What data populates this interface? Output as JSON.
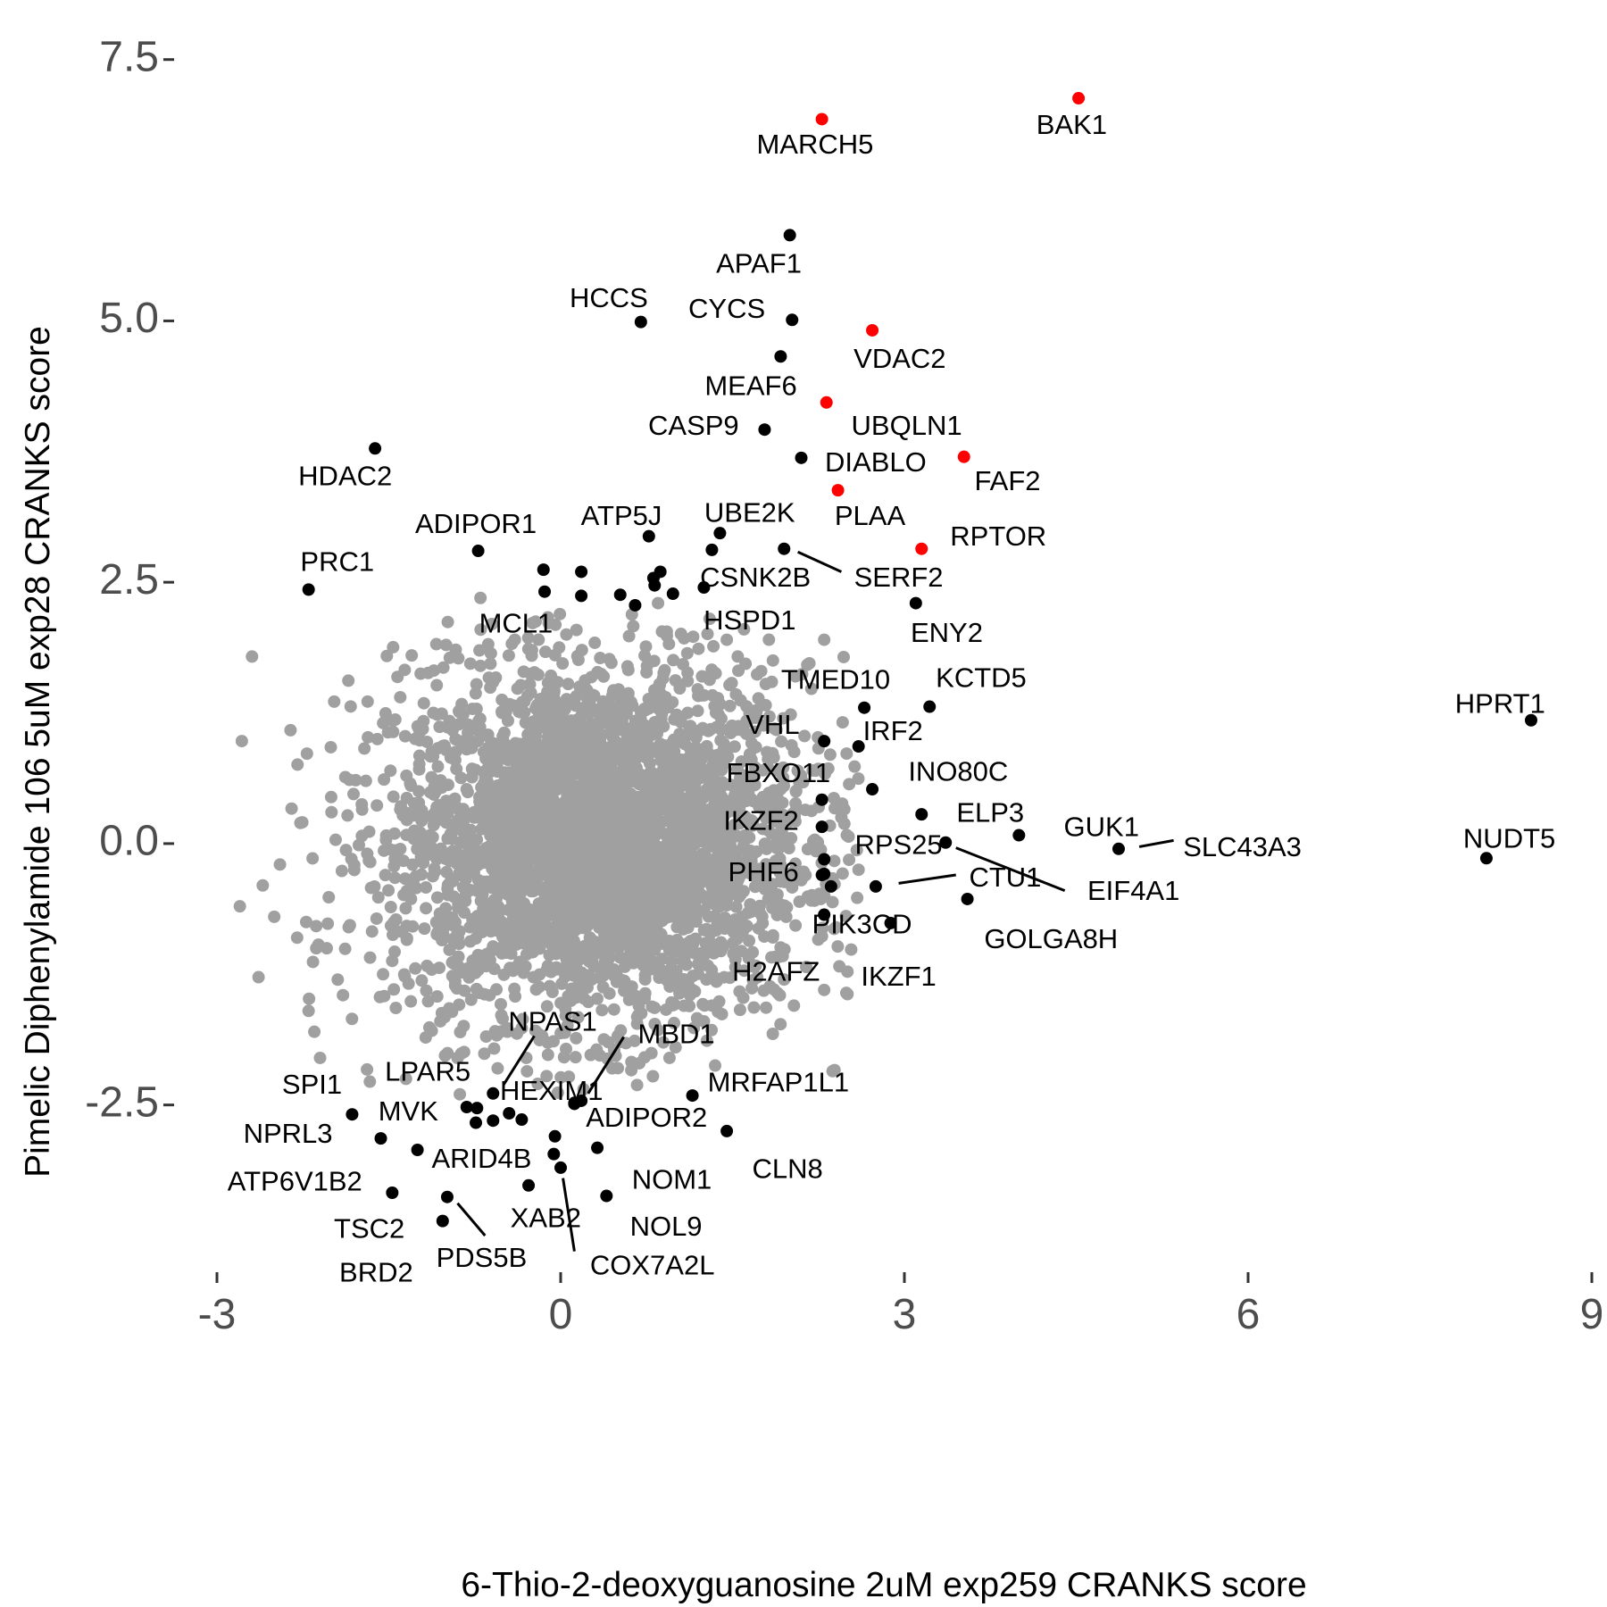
{
  "chart_data": {
    "type": "scatter",
    "xlabel": "6-Thio-2-deoxyguanosine 2uM exp259 CRANKS score",
    "ylabel": "Pimelic Diphenylamide 106 5uM exp28 CRANKS score",
    "xlim": [
      -3,
      9
    ],
    "ylim": [
      -4.1,
      7.6
    ],
    "x_ticks": [
      -3,
      0,
      3,
      6,
      9
    ],
    "x_tick_labels": [
      "-3",
      "0",
      "3",
      "6",
      "9"
    ],
    "y_ticks": [
      -2.5,
      0,
      2.5,
      5,
      7.5
    ],
    "y_tick_labels": [
      "-2.5",
      "0.0",
      "2.5",
      "5.0",
      "7.5"
    ],
    "grid": false,
    "colors": {
      "background_points": "#a0a0a0",
      "labeled_points": "#000000",
      "highlighted_points": "#ff0000"
    },
    "background_cloud": {
      "description_of_values": "thousands of unlabeled genes",
      "center": [
        0.35,
        0.0
      ],
      "sd": [
        0.9,
        0.85
      ],
      "count": 3500,
      "outliers": [
        [
          -2.8,
          -0.6
        ],
        [
          -2.6,
          -0.4
        ],
        [
          -2.5,
          -0.7
        ],
        [
          -2.45,
          -0.2
        ],
        [
          -2.3,
          -0.9
        ],
        [
          -2.2,
          -1.6
        ],
        [
          -2.15,
          -1.8
        ],
        [
          -2.1,
          -2.05
        ],
        [
          -1.9,
          -1.45
        ],
        [
          -1.85,
          -0.8
        ],
        [
          -1.7,
          0.6
        ],
        [
          -1.6,
          1.0
        ],
        [
          -1.4,
          1.4
        ],
        [
          -1.3,
          1.8
        ],
        [
          -1.0,
          1.9
        ],
        [
          -0.7,
          1.7
        ],
        [
          -0.6,
          2.1
        ],
        [
          -0.4,
          1.95
        ],
        [
          -0.25,
          1.85
        ],
        [
          0.05,
          2.0
        ],
        [
          -0.9,
          -2.05
        ],
        [
          -0.55,
          -2.15
        ],
        [
          -0.3,
          -2.05
        ],
        [
          0.2,
          -2.35
        ],
        [
          0.45,
          -2.15
        ],
        [
          0.95,
          -2.05
        ],
        [
          1.25,
          -1.7
        ],
        [
          1.95,
          -1.3
        ],
        [
          2.3,
          -1.4
        ],
        [
          2.1,
          -0.35
        ],
        [
          2.2,
          0.7
        ],
        [
          2.05,
          1.6
        ],
        [
          2.3,
          1.95
        ],
        [
          1.3,
          2.15
        ],
        [
          1.6,
          2.05
        ],
        [
          -1.35,
          -2.25
        ],
        [
          -1.55,
          -1.25
        ],
        [
          1.45,
          1.95
        ],
        [
          -2.0,
          0.3
        ],
        [
          2.45,
          0.25
        ],
        [
          -0.7,
          2.35
        ],
        [
          1.75,
          1.65
        ],
        [
          -1.05,
          -1.7
        ],
        [
          0.85,
          2.3
        ],
        [
          2.6,
          -0.25
        ]
      ]
    },
    "points": [
      {
        "gene": "BAK1",
        "x": 4.52,
        "y": 7.13,
        "hl": true
      },
      {
        "gene": "MARCH5",
        "x": 2.28,
        "y": 6.93,
        "hl": true
      },
      {
        "gene": "APAF1",
        "x": 2.0,
        "y": 5.82
      },
      {
        "gene": "CYCS",
        "x": 2.02,
        "y": 5.01
      },
      {
        "gene": "HCCS",
        "x": 0.7,
        "y": 4.99
      },
      {
        "gene": "VDAC2",
        "x": 2.72,
        "y": 4.91,
        "hl": true
      },
      {
        "gene": "MEAF6",
        "x": 1.92,
        "y": 4.66
      },
      {
        "gene": "UBQLN1",
        "x": 2.32,
        "y": 4.22,
        "hl": true
      },
      {
        "gene": "CASP9",
        "x": 1.78,
        "y": 3.96
      },
      {
        "gene": "HDAC2",
        "x": -1.62,
        "y": 3.78
      },
      {
        "gene": "DIABLO",
        "x": 2.1,
        "y": 3.69
      },
      {
        "gene": "FAF2",
        "x": 3.52,
        "y": 3.7,
        "hl": true
      },
      {
        "gene": "PLAA",
        "x": 2.42,
        "y": 3.38,
        "hl": true
      },
      {
        "gene": "ATP5J",
        "x": 0.77,
        "y": 2.94
      },
      {
        "gene": "UBE2K",
        "x": 1.39,
        "y": 2.97
      },
      {
        "gene": "RPTOR",
        "x": 3.15,
        "y": 2.82,
        "hl": true
      },
      {
        "gene": "ADIPOR1",
        "x": -0.72,
        "y": 2.8
      },
      {
        "gene": "SERF2",
        "x": 1.95,
        "y": 2.82
      },
      {
        "gene": "CSNK2B",
        "x": 1.32,
        "y": 2.81
      },
      {
        "gene": "PRC1",
        "x": -2.2,
        "y": 2.43
      },
      {
        "gene": "ENY2",
        "x": 3.1,
        "y": 2.3
      },
      {
        "gene": "MCL1",
        "x": -0.15,
        "y": 2.62
      },
      {
        "gene": "HSPD1",
        "x": 1.25,
        "y": 2.45
      },
      {
        "gene": "TMED10",
        "x": 2.65,
        "y": 1.3
      },
      {
        "gene": "KCTD5",
        "x": 3.22,
        "y": 1.31
      },
      {
        "gene": "IRF2",
        "x": 2.6,
        "y": 0.93
      },
      {
        "gene": "VHL",
        "x": 2.3,
        "y": 0.98
      },
      {
        "gene": "HPRT1",
        "x": 8.47,
        "y": 1.18
      },
      {
        "gene": "INO80C",
        "x": 2.72,
        "y": 0.52
      },
      {
        "gene": "FBXO11",
        "x": 2.28,
        "y": 0.42
      },
      {
        "gene": "ELP3",
        "x": 3.15,
        "y": 0.28
      },
      {
        "gene": "IKZF2",
        "x": 2.28,
        "y": 0.16
      },
      {
        "gene": "GUK1",
        "x": 4.0,
        "y": 0.08
      },
      {
        "gene": "RPS25",
        "x": 3.36,
        "y": 0.01
      },
      {
        "gene": "NUDT5",
        "x": 8.08,
        "y": -0.14
      },
      {
        "gene": "SLC43A3",
        "x": 4.87,
        "y": -0.05
      },
      {
        "gene": "PHF6",
        "x": 2.3,
        "y": -0.15
      },
      {
        "gene": "EIF4A1",
        "x": 2.3,
        "y": -0.29
      },
      {
        "gene": "CTU1",
        "x": 2.75,
        "y": -0.41
      },
      {
        "gene": "PIK3CD",
        "x": 2.36,
        "y": -0.41
      },
      {
        "gene": "GOLGA8H",
        "x": 3.55,
        "y": -0.53
      },
      {
        "gene": "IKZF1",
        "x": 2.88,
        "y": -0.76
      },
      {
        "gene": "H2AFZ",
        "x": 2.3,
        "y": -0.68
      },
      {
        "gene": "MRFAP1L1",
        "x": 1.15,
        "y": -2.41
      },
      {
        "gene": "HEXIM1",
        "x": 0.18,
        "y": -2.46
      },
      {
        "gene": "NPAS1",
        "x": -0.59,
        "y": -2.39
      },
      {
        "gene": "MBD1",
        "x": 0.12,
        "y": -2.49
      },
      {
        "gene": "ADIPOR2",
        "x": -0.34,
        "y": -2.64
      },
      {
        "gene": "LPAR5",
        "x": -0.82,
        "y": -2.52
      },
      {
        "gene": "SPI1",
        "x": -1.82,
        "y": -2.59
      },
      {
        "gene": "MVK",
        "x": -0.74,
        "y": -2.67
      },
      {
        "gene": "NPRL3",
        "x": -1.57,
        "y": -2.82
      },
      {
        "gene": "CLN8",
        "x": 1.45,
        "y": -2.75
      },
      {
        "gene": "ARID4B",
        "x": -1.25,
        "y": -2.93
      },
      {
        "gene": "NOM1",
        "x": 0.32,
        "y": -2.91
      },
      {
        "gene": "ATP6V1B2",
        "x": -0.06,
        "y": -2.97
      },
      {
        "gene": "XAB2",
        "x": -0.28,
        "y": -3.27
      },
      {
        "gene": "NOL9",
        "x": 0.4,
        "y": -3.37
      },
      {
        "gene": "TSC2",
        "x": -1.47,
        "y": -3.34
      },
      {
        "gene": "PDS5B",
        "x": -0.99,
        "y": -3.38
      },
      {
        "gene": "BRD2",
        "x": -1.03,
        "y": -3.61
      },
      {
        "gene": "COX7A2L",
        "x": 0.0,
        "y": -3.1
      }
    ],
    "extra_unlabeled_black_points": [
      [
        -0.14,
        2.41
      ],
      [
        0.18,
        2.37
      ],
      [
        0.18,
        2.6
      ],
      [
        0.52,
        2.38
      ],
      [
        0.82,
        2.47
      ],
      [
        0.87,
        2.6
      ],
      [
        0.65,
        2.28
      ],
      [
        0.98,
        2.39
      ],
      [
        0.81,
        2.54
      ],
      [
        2.28,
        -0.3
      ],
      [
        -0.59,
        -2.65
      ],
      [
        -0.73,
        -2.53
      ],
      [
        -0.45,
        -2.58
      ],
      [
        0.12,
        -2.48
      ],
      [
        -0.05,
        -2.8
      ]
    ],
    "labels": [
      {
        "text": "BAK1",
        "x": 4.46,
        "y": 6.86,
        "lx": null
      },
      {
        "text": "MARCH5",
        "x": 2.22,
        "y": 6.67
      },
      {
        "text": "APAF1",
        "x": 1.73,
        "y": 5.53
      },
      {
        "text": "HCCS",
        "x": 0.42,
        "y": 5.2
      },
      {
        "text": "CYCS",
        "x": 1.45,
        "y": 5.1
      },
      {
        "text": "VDAC2",
        "x": 2.96,
        "y": 4.62
      },
      {
        "text": "MEAF6",
        "x": 1.66,
        "y": 4.36
      },
      {
        "text": "UBQLN1",
        "x": 3.02,
        "y": 3.98
      },
      {
        "text": "CASP9",
        "x": 1.16,
        "y": 3.98
      },
      {
        "text": "HDAC2",
        "x": -1.88,
        "y": 3.5
      },
      {
        "text": "DIABLO",
        "x": 2.75,
        "y": 3.63
      },
      {
        "text": "FAF2",
        "x": 3.9,
        "y": 3.45
      },
      {
        "text": "PLAA",
        "x": 2.7,
        "y": 3.12
      },
      {
        "text": "ATP5J",
        "x": 0.53,
        "y": 3.12
      },
      {
        "text": "UBE2K",
        "x": 1.65,
        "y": 3.15
      },
      {
        "text": "RPTOR",
        "x": 3.82,
        "y": 2.92
      },
      {
        "text": "ADIPOR1",
        "x": -0.74,
        "y": 3.04
      },
      {
        "text": "CSNK2B",
        "x": 1.7,
        "y": 2.53
      },
      {
        "text": "SERF2",
        "x": 2.95,
        "y": 2.53
      },
      {
        "text": "PRC1",
        "x": -1.95,
        "y": 2.68
      },
      {
        "text": "ENY2",
        "x": 3.37,
        "y": 2.0
      },
      {
        "text": "MCL1",
        "x": -0.39,
        "y": 2.09
      },
      {
        "text": "HSPD1",
        "x": 1.65,
        "y": 2.12
      },
      {
        "text": "TMED10",
        "x": 2.4,
        "y": 1.55
      },
      {
        "text": "KCTD5",
        "x": 3.67,
        "y": 1.57
      },
      {
        "text": "IRF2",
        "x": 2.9,
        "y": 1.06
      },
      {
        "text": "VHL",
        "x": 1.85,
        "y": 1.12
      },
      {
        "text": "HPRT1",
        "x": 8.2,
        "y": 1.32
      },
      {
        "text": "INO80C",
        "x": 3.47,
        "y": 0.67
      },
      {
        "text": "FBXO11",
        "x": 1.9,
        "y": 0.66
      },
      {
        "text": "ELP3",
        "x": 3.75,
        "y": 0.28
      },
      {
        "text": "IKZF2",
        "x": 1.75,
        "y": 0.2
      },
      {
        "text": "GUK1",
        "x": 4.72,
        "y": 0.14
      },
      {
        "text": "RPS25",
        "x": 2.95,
        "y": -0.03
      },
      {
        "text": "NUDT5",
        "x": 8.28,
        "y": 0.03
      },
      {
        "text": "SLC43A3",
        "x": 5.95,
        "y": -0.05
      },
      {
        "text": "PHF6",
        "x": 1.77,
        "y": -0.29
      },
      {
        "text": "EIF4A1",
        "x": 5.0,
        "y": -0.47
      },
      {
        "text": "CTU1",
        "x": 3.88,
        "y": -0.34
      },
      {
        "text": "PIK3CD",
        "x": 2.63,
        "y": -0.79
      },
      {
        "text": "GOLGA8H",
        "x": 4.28,
        "y": -0.93
      },
      {
        "text": "IKZF1",
        "x": 2.95,
        "y": -1.29
      },
      {
        "text": "H2AFZ",
        "x": 1.88,
        "y": -1.24
      },
      {
        "text": "MRFAP1L1",
        "x": 1.9,
        "y": -2.3
      },
      {
        "text": "HEXIM1",
        "x": -0.08,
        "y": -2.38
      },
      {
        "text": "NPAS1",
        "x": -0.07,
        "y": -1.72
      },
      {
        "text": "MBD1",
        "x": 1.01,
        "y": -1.84
      },
      {
        "text": "ADIPOR2",
        "x": 0.75,
        "y": -2.64
      },
      {
        "text": "LPAR5",
        "x": -1.16,
        "y": -2.2
      },
      {
        "text": "SPI1",
        "x": -2.17,
        "y": -2.32
      },
      {
        "text": "MVK",
        "x": -1.33,
        "y": -2.58
      },
      {
        "text": "NPRL3",
        "x": -2.38,
        "y": -2.79
      },
      {
        "text": "CLN8",
        "x": 1.98,
        "y": -3.13
      },
      {
        "text": "ARID4B",
        "x": -0.69,
        "y": -3.03
      },
      {
        "text": "NOM1",
        "x": 0.97,
        "y": -3.23
      },
      {
        "text": "ATP6V1B2",
        "x": -2.32,
        "y": -3.25
      },
      {
        "text": "XAB2",
        "x": -0.13,
        "y": -3.6
      },
      {
        "text": "NOL9",
        "x": 0.92,
        "y": -3.68
      },
      {
        "text": "TSC2",
        "x": -1.67,
        "y": -3.7
      },
      {
        "text": "PDS5B",
        "x": -0.69,
        "y": -3.98
      },
      {
        "text": "BRD2",
        "x": -1.61,
        "y": -4.12
      },
      {
        "text": "COX7A2L",
        "x": 0.8,
        "y": -4.05
      }
    ],
    "leader_lines": [
      [
        [
          2.07,
          2.79
        ],
        [
          2.45,
          2.6
        ]
      ],
      [
        [
          3.45,
          -0.04
        ],
        [
          4.4,
          -0.45
        ]
      ],
      [
        [
          2.95,
          -0.38
        ],
        [
          3.45,
          -0.3
        ]
      ],
      [
        [
          5.05,
          -0.03
        ],
        [
          5.35,
          0.03
        ]
      ],
      [
        [
          -0.5,
          -2.31
        ],
        [
          -0.23,
          -1.84
        ]
      ],
      [
        [
          0.24,
          -2.39
        ],
        [
          0.55,
          -1.85
        ]
      ],
      [
        [
          0.02,
          -3.2
        ],
        [
          0.12,
          -3.9
        ]
      ],
      [
        [
          -0.9,
          -3.44
        ],
        [
          -0.66,
          -3.75
        ]
      ]
    ]
  }
}
